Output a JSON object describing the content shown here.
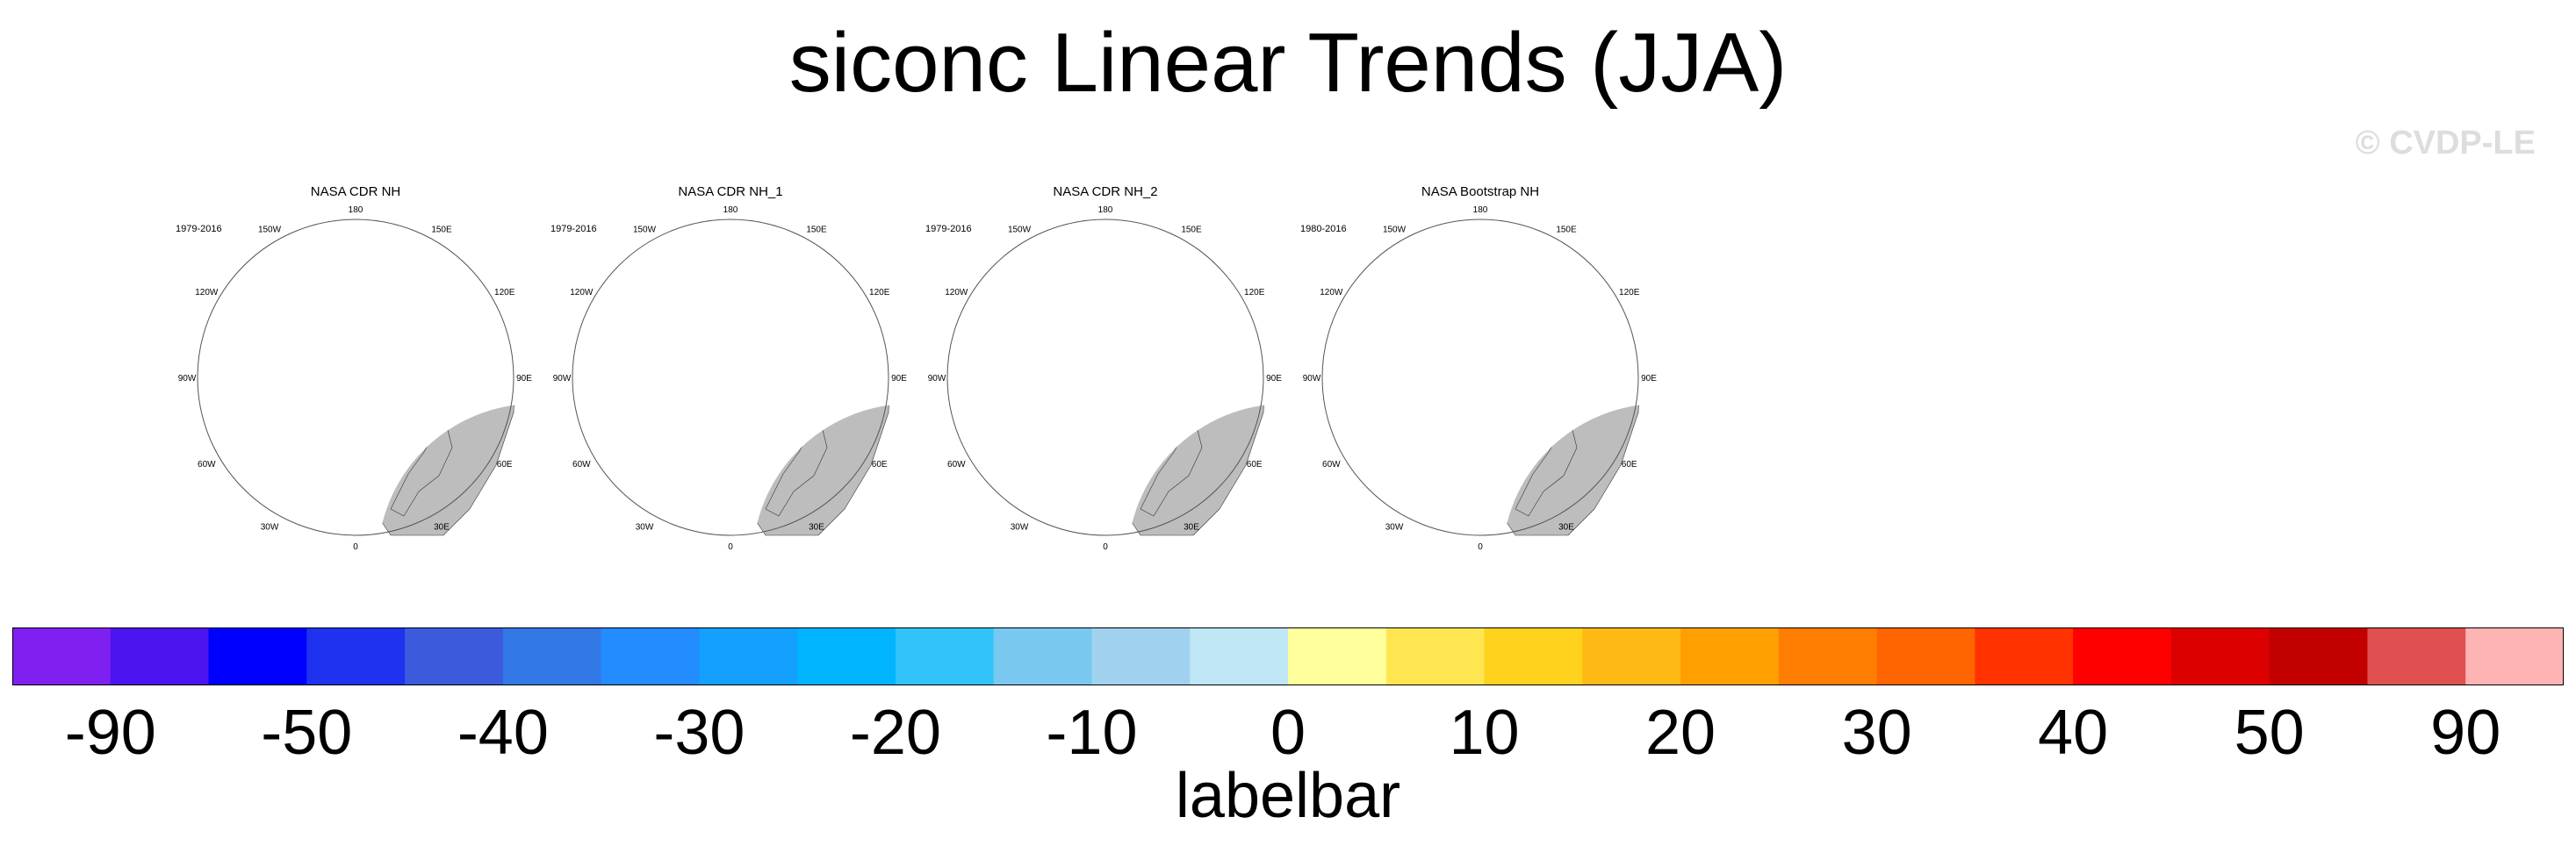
{
  "title": "siconc Linear Trends (JJA)",
  "watermark": "© CVDP-LE",
  "panels": [
    {
      "title": "NASA CDR NH",
      "years": "1979-2016"
    },
    {
      "title": "NASA CDR NH_1",
      "years": "1979-2016"
    },
    {
      "title": "NASA CDR NH_2",
      "years": "1979-2016"
    },
    {
      "title": "NASA Bootstrap NH",
      "years": "1980-2016"
    }
  ],
  "map_labels": [
    "180",
    "150E",
    "120E",
    "90E",
    "60E",
    "30E",
    "0",
    "30W",
    "60W",
    "90W",
    "120W",
    "150W"
  ],
  "colorbar": {
    "title": "labelbar",
    "colors": [
      "#8020f0",
      "#4b14f0",
      "#0000ff",
      "#1e32f0",
      "#3c5adc",
      "#3278e6",
      "#238cff",
      "#14a0ff",
      "#00b4ff",
      "#32c3fa",
      "#78c8f0",
      "#a0d2f0",
      "#bee6f5",
      "#ffff9b",
      "#ffe650",
      "#ffd21e",
      "#ffb914",
      "#ffa000",
      "#ff7d00",
      "#ff6400",
      "#ff3200",
      "#ff0000",
      "#dc0000",
      "#c30000",
      "#e05050",
      "#ffb4b4"
    ],
    "tick_labels": [
      "-90",
      "-50",
      "-40",
      "-30",
      "-20",
      "-10",
      "0",
      "10",
      "20",
      "30",
      "40",
      "50",
      "90"
    ],
    "tick_boundaries": [
      1,
      3,
      5,
      7,
      9,
      11,
      13,
      15,
      17,
      19,
      21,
      23,
      25
    ]
  }
}
